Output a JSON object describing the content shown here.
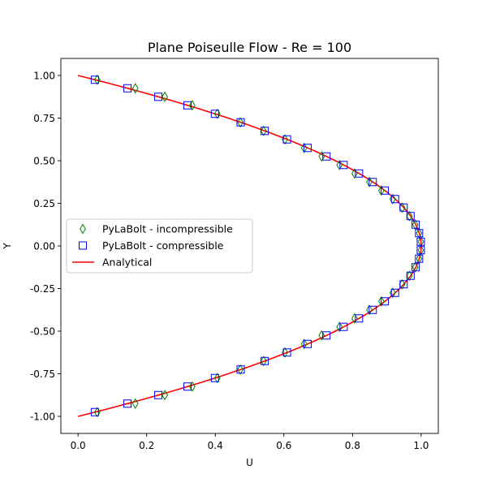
{
  "chart_data": {
    "type": "line",
    "title": "Plane Poiseulle Flow - Re = 100",
    "xlabel": "U",
    "ylabel": "Y",
    "xlim": [
      -0.05,
      1.05
    ],
    "ylim": [
      -1.1,
      1.1
    ],
    "xticks": [
      "0.0",
      "0.2",
      "0.4",
      "0.6",
      "0.8",
      "1.0"
    ],
    "yticks": [
      "-1.00",
      "-0.75",
      "-0.50",
      "-0.25",
      "0.00",
      "0.25",
      "0.50",
      "0.75",
      "1.00"
    ],
    "legend_position": "center-left",
    "grid": false,
    "series": [
      {
        "name": "PyLaBolt - incompressible",
        "kind": "marker",
        "marker": "thin-diamond",
        "color": "#008000",
        "y": [
          0.975,
          0.925,
          0.875,
          0.825,
          0.775,
          0.725,
          0.675,
          0.625,
          0.575,
          0.525,
          0.475,
          0.425,
          0.375,
          0.325,
          0.275,
          0.225,
          0.175,
          0.125,
          0.075,
          0.025,
          -0.025,
          -0.075,
          -0.125,
          -0.175,
          -0.225,
          -0.275,
          -0.325,
          -0.375,
          -0.425,
          -0.475,
          -0.525,
          -0.575,
          -0.625,
          -0.675,
          -0.725,
          -0.775,
          -0.825,
          -0.875,
          -0.925,
          -0.975
        ],
        "x": [
          0.056,
          0.167,
          0.253,
          0.333,
          0.406,
          0.473,
          0.541,
          0.603,
          0.659,
          0.71,
          0.762,
          0.806,
          0.849,
          0.884,
          0.917,
          0.945,
          0.966,
          0.983,
          0.994,
          0.999,
          0.999,
          0.994,
          0.983,
          0.966,
          0.945,
          0.917,
          0.884,
          0.849,
          0.806,
          0.762,
          0.71,
          0.659,
          0.603,
          0.541,
          0.473,
          0.406,
          0.333,
          0.253,
          0.167,
          0.056
        ]
      },
      {
        "name": "PyLaBolt - compressible",
        "kind": "marker",
        "marker": "square",
        "color": "#0000ff",
        "y": [
          0.975,
          0.925,
          0.875,
          0.825,
          0.775,
          0.725,
          0.675,
          0.625,
          0.575,
          0.525,
          0.475,
          0.425,
          0.375,
          0.325,
          0.275,
          0.225,
          0.175,
          0.125,
          0.075,
          0.025,
          -0.025,
          -0.075,
          -0.125,
          -0.175,
          -0.225,
          -0.275,
          -0.325,
          -0.375,
          -0.425,
          -0.475,
          -0.525,
          -0.575,
          -0.625,
          -0.675,
          -0.725,
          -0.775,
          -0.825,
          -0.875,
          -0.925,
          -0.975
        ],
        "x": [
          0.049,
          0.144,
          0.234,
          0.319,
          0.399,
          0.474,
          0.544,
          0.609,
          0.669,
          0.724,
          0.774,
          0.819,
          0.859,
          0.894,
          0.924,
          0.949,
          0.969,
          0.984,
          0.994,
          0.999,
          0.999,
          0.994,
          0.984,
          0.969,
          0.949,
          0.924,
          0.894,
          0.859,
          0.819,
          0.774,
          0.724,
          0.669,
          0.609,
          0.544,
          0.474,
          0.399,
          0.319,
          0.234,
          0.144,
          0.049
        ]
      },
      {
        "name": "Analytical",
        "kind": "line",
        "color": "#ff0000",
        "formula": "U = 1 - Y^2",
        "y": [
          -1.0,
          -0.9,
          -0.8,
          -0.7,
          -0.6,
          -0.5,
          -0.4,
          -0.3,
          -0.2,
          -0.1,
          0.0,
          0.1,
          0.2,
          0.3,
          0.4,
          0.5,
          0.6,
          0.7,
          0.8,
          0.9,
          1.0
        ],
        "x": [
          0.0,
          0.19,
          0.36,
          0.51,
          0.64,
          0.75,
          0.84,
          0.91,
          0.96,
          0.99,
          1.0,
          0.99,
          0.96,
          0.91,
          0.84,
          0.75,
          0.64,
          0.51,
          0.36,
          0.19,
          0.0
        ]
      }
    ]
  }
}
